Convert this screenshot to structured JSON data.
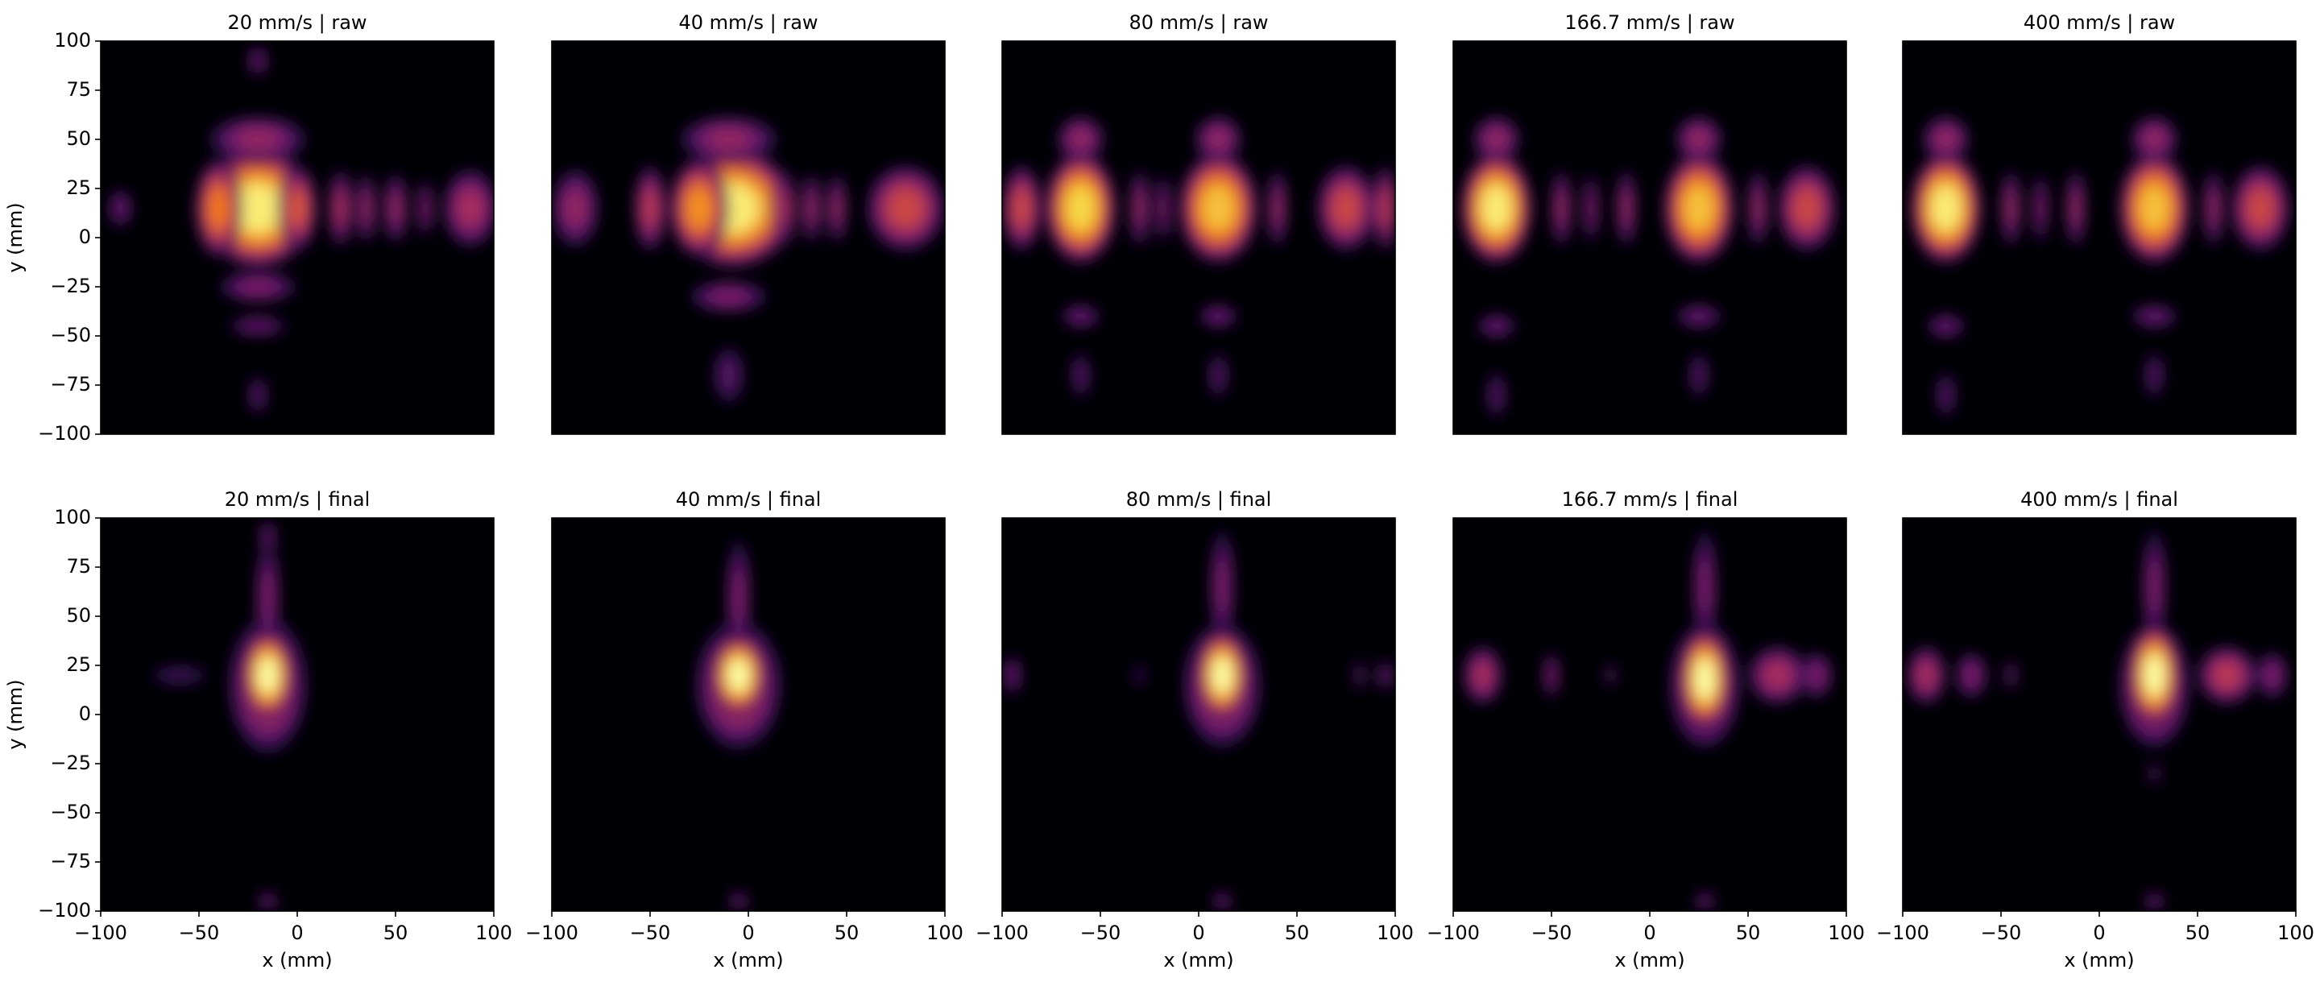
{
  "chart_data": [
    {
      "type": "heatmap",
      "title": "20 mm/s | raw",
      "colormap": "inferno",
      "xlim": [
        -100,
        100
      ],
      "ylim": [
        -100,
        100
      ],
      "ylabel": "y (mm)",
      "yticks": [
        {
          "value": -100,
          "label": "−100"
        },
        {
          "value": -75,
          "label": "−75"
        },
        {
          "value": -50,
          "label": "−50"
        },
        {
          "value": -25,
          "label": "−25"
        },
        0,
        25,
        50,
        75,
        100
      ]
    },
    {
      "type": "heatmap",
      "title": "40 mm/s | raw",
      "colormap": "inferno",
      "xlim": [
        -100,
        100
      ],
      "ylim": [
        -100,
        100
      ]
    },
    {
      "type": "heatmap",
      "title": "80 mm/s | raw",
      "colormap": "inferno",
      "xlim": [
        -100,
        100
      ],
      "ylim": [
        -100,
        100
      ]
    },
    {
      "type": "heatmap",
      "title": "166.7 mm/s | raw",
      "colormap": "inferno",
      "xlim": [
        -100,
        100
      ],
      "ylim": [
        -100,
        100
      ]
    },
    {
      "type": "heatmap",
      "title": "400 mm/s | raw",
      "colormap": "inferno",
      "xlim": [
        -100,
        100
      ],
      "ylim": [
        -100,
        100
      ]
    },
    {
      "type": "heatmap",
      "title": "20 mm/s | final",
      "colormap": "inferno",
      "xlim": [
        -100,
        100
      ],
      "ylim": [
        -100,
        100
      ],
      "xlabel": "x (mm)",
      "ylabel": "y (mm)",
      "xticks": [
        {
          "value": -100,
          "label": "−100"
        },
        {
          "value": -50,
          "label": "−50"
        },
        0,
        50,
        100
      ],
      "yticks": [
        {
          "value": -100,
          "label": "−100"
        },
        {
          "value": -75,
          "label": "−75"
        },
        {
          "value": -50,
          "label": "−50"
        },
        {
          "value": -25,
          "label": "−25"
        },
        0,
        25,
        50,
        75,
        100
      ]
    },
    {
      "type": "heatmap",
      "title": "40 mm/s | final",
      "colormap": "inferno",
      "xlim": [
        -100,
        100
      ],
      "ylim": [
        -100,
        100
      ],
      "xlabel": "x (mm)",
      "xticks": [
        {
          "value": -100,
          "label": "−100"
        },
        {
          "value": -50,
          "label": "−50"
        },
        0,
        50,
        100
      ]
    },
    {
      "type": "heatmap",
      "title": "80 mm/s | final",
      "colormap": "inferno",
      "xlim": [
        -100,
        100
      ],
      "ylim": [
        -100,
        100
      ],
      "xlabel": "x (mm)",
      "xticks": [
        {
          "value": -100,
          "label": "−100"
        },
        {
          "value": -50,
          "label": "−50"
        },
        0,
        50,
        100
      ]
    },
    {
      "type": "heatmap",
      "title": "166.7 mm/s | final",
      "colormap": "inferno",
      "xlim": [
        -100,
        100
      ],
      "ylim": [
        -100,
        100
      ],
      "xlabel": "x (mm)",
      "xticks": [
        {
          "value": -100,
          "label": "−100"
        },
        {
          "value": -50,
          "label": "−50"
        },
        0,
        50,
        100
      ]
    },
    {
      "type": "heatmap",
      "title": "400 mm/s | final",
      "colormap": "inferno",
      "xlim": [
        -100,
        100
      ],
      "ylim": [
        -100,
        100
      ],
      "xlabel": "x (mm)",
      "xticks": [
        {
          "value": -100,
          "label": "−100"
        },
        {
          "value": -50,
          "label": "−50"
        },
        0,
        50,
        100
      ]
    }
  ]
}
